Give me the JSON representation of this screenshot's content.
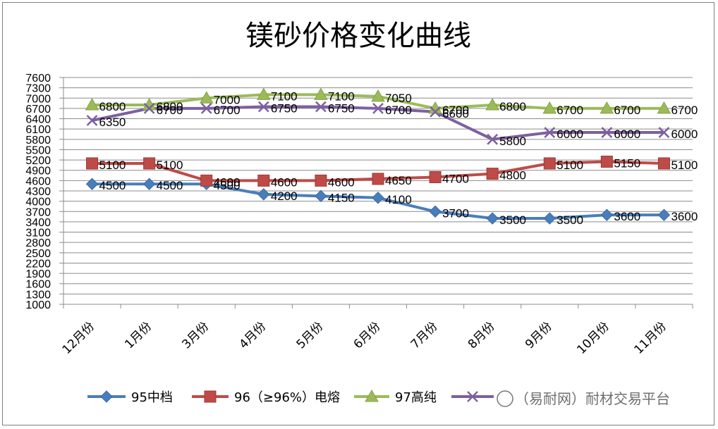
{
  "chart_data": {
    "type": "line",
    "title": "镁砂价格变化曲线",
    "categories": [
      "12月份",
      "1月份",
      "3月份",
      "4月份",
      "5月份",
      "6月份",
      "7月份",
      "8月份",
      "9月份",
      "10月份",
      "11月份"
    ],
    "y_ticks": [
      1000,
      1300,
      1600,
      1900,
      2200,
      2500,
      2800,
      3100,
      3400,
      3700,
      4000,
      4300,
      4600,
      4900,
      5200,
      5500,
      5800,
      6100,
      6400,
      6700,
      7000,
      7300,
      7600
    ],
    "ylim": [
      1000,
      7600
    ],
    "grid": true,
    "legend_position": "bottom",
    "series": [
      {
        "name": "95中档",
        "color": "#4a7ebb",
        "marker": "diamond",
        "values": [
          4500,
          4500,
          4500,
          4200,
          4150,
          4100,
          3700,
          3500,
          3500,
          3600,
          3600
        ]
      },
      {
        "name": "96（≥96%）电熔",
        "color": "#be4b48",
        "marker": "square",
        "values": [
          5100,
          5100,
          4600,
          4600,
          4600,
          4650,
          4700,
          4800,
          5100,
          5150,
          5100
        ]
      },
      {
        "name": "97高纯",
        "color": "#9bbb59",
        "marker": "triangle",
        "values": [
          6800,
          6800,
          7000,
          7100,
          7100,
          7050,
          6700,
          6800,
          6700,
          6700,
          6700
        ]
      },
      {
        "name": "",
        "color": "#7d60a0",
        "marker": "x",
        "values": [
          6350,
          6700,
          6700,
          6750,
          6750,
          6700,
          6600,
          5800,
          6000,
          6000,
          6000
        ]
      }
    ],
    "data_labels": [
      [
        "4500",
        "4500",
        "4500",
        "4200",
        "4150",
        "4100",
        "3700",
        "3500",
        "3500",
        "3600",
        "3600"
      ],
      [
        "5100",
        "5100",
        "4600",
        "4600",
        "4600",
        "4650",
        "4700",
        "4800",
        "5100",
        "5150",
        "5100"
      ],
      [
        "6800",
        "6800",
        "7000",
        "7100",
        "7100",
        "7050",
        "6700",
        "6800",
        "6700",
        "6700",
        "6700"
      ],
      [
        "6350",
        "6700",
        "6700",
        "6750",
        "6750",
        "6700",
        "6600",
        "5800",
        "6000",
        "6000",
        "6000"
      ]
    ]
  },
  "watermark": "（易耐网）耐材交易平台"
}
